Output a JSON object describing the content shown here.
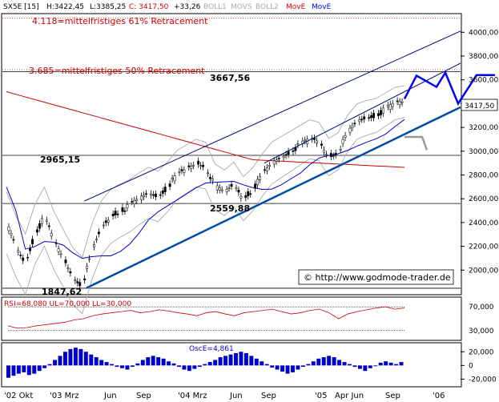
{
  "header": {
    "symbol": "SX5E [15]",
    "high": "H:3422,45",
    "low": "L:3385,25",
    "close": "C: 3417,50",
    "change": "+33,26",
    "ind1": "BOLL1",
    "ind2": "MOVS",
    "ind3": "BOLL2",
    "ind4": "MovE",
    "ind5": "MovE",
    "colors": {
      "text": "#000000",
      "close": "#cc0000",
      "gray": "#aaaaaa",
      "red": "#cc0000",
      "blue": "#0000cc"
    }
  },
  "chart_data": [
    {
      "type": "line",
      "ylim": [
        1800,
        4150
      ],
      "y_ticks": [
        "2000,00",
        "2200,00",
        "2400,00",
        "2600,00",
        "2800,00",
        "3000,00",
        "3200,00",
        "3400,00",
        "3600,00",
        "3800,00",
        "4000,00"
      ],
      "y_tick_values": [
        2000,
        2200,
        2400,
        2600,
        2800,
        3000,
        3200,
        3400,
        3600,
        3800,
        4000
      ],
      "x_ticks": [
        "'02 Okt",
        "'03 Mrz",
        "Jun",
        "Sep",
        "'04 Mrz",
        "Jun",
        "Sep",
        "'05",
        "Apr Jun",
        "Sep",
        "'06"
      ],
      "last_price_label": "3417,50",
      "levels": [
        {
          "label": "1847,62",
          "value": 1847.62
        },
        {
          "label": "2559,88",
          "value": 2559.88
        },
        {
          "label": "2965,15",
          "value": 2965.15
        },
        {
          "label": "3667,56",
          "value": 3667.56
        }
      ],
      "annotations": [
        {
          "text": "4.118=mittelfristiges 61% Retracement",
          "color": "#cc0000"
        },
        {
          "text": "3.685=mittelfristiges 50% Retracement",
          "color": "#cc0000"
        }
      ],
      "watermark": "© http://www.godmode-trader.de",
      "series": [
        {
          "values": [
            2400,
            2200,
            2050,
            2300,
            2450,
            2250,
            2100,
            1950,
            1870,
            2150,
            2350,
            2450,
            2500,
            2540,
            2600,
            2650,
            2620,
            2700,
            2800,
            2850,
            2900,
            2880,
            2700,
            2650,
            2720,
            2600,
            2680,
            2800,
            2900,
            2950,
            3000,
            3050,
            3100,
            3080,
            2950,
            3000,
            3150,
            3250,
            3280,
            3300,
            3350,
            3400,
            3417
          ]
        }
      ]
    },
    {
      "type": "line",
      "title": "RSI=68,080 UL=70,000 LL=30,000",
      "ylim": [
        15,
        85
      ],
      "y_ticks": [
        "70,000",
        "30,000"
      ],
      "y_tick_values": [
        70,
        30
      ],
      "series": [
        {
          "values": [
            38,
            34,
            35,
            38,
            40,
            42,
            44,
            48,
            50,
            55,
            58,
            60,
            62,
            64,
            60,
            62,
            65,
            63,
            60,
            58,
            55,
            60,
            62,
            58,
            55,
            60,
            62,
            64,
            66,
            62,
            58,
            60,
            64,
            66,
            60,
            50,
            58,
            62,
            65,
            68,
            70,
            66,
            68
          ]
        }
      ]
    },
    {
      "type": "bar",
      "title": "OscE=4,861",
      "ylim": [
        -30,
        32
      ],
      "y_ticks": [
        "20,000",
        "0",
        "-20,000"
      ],
      "y_tick_values": [
        20,
        0,
        -20
      ],
      "values": [
        -18,
        -15,
        -12,
        -10,
        -14,
        -12,
        -8,
        -4,
        2,
        8,
        14,
        20,
        24,
        26,
        24,
        20,
        16,
        12,
        8,
        5,
        2,
        -2,
        -4,
        -6,
        -2,
        3,
        8,
        12,
        14,
        12,
        10,
        6,
        3,
        -2,
        -6,
        -8,
        -5,
        -2,
        2,
        5,
        8,
        12,
        14,
        16,
        18,
        20,
        18,
        14,
        10,
        6,
        2,
        -3,
        -6,
        -9,
        -12,
        -10,
        -6,
        -2,
        2,
        6,
        10,
        12,
        14,
        12,
        8,
        5,
        2,
        -2,
        -5,
        -8,
        -4,
        0,
        4,
        6,
        4,
        2,
        5
      ]
    }
  ]
}
